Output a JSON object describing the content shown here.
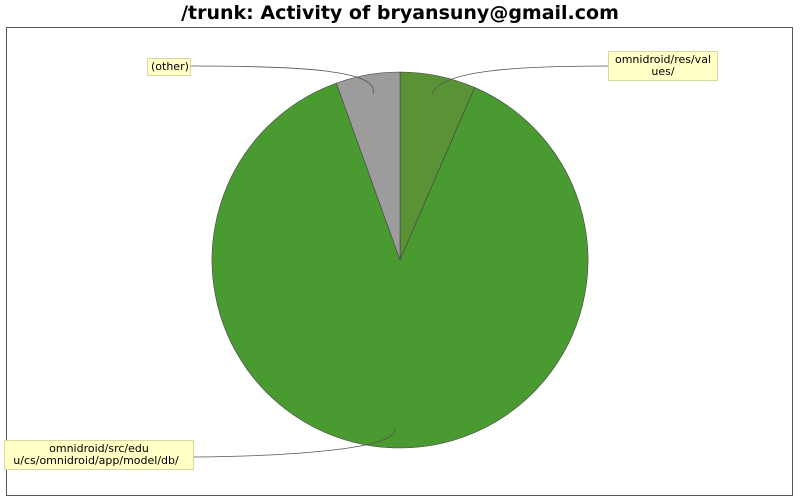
{
  "title": "/trunk: Activity of bryansuny@gmail.com",
  "chart_data": {
    "type": "pie",
    "slices": [
      {
        "label_lines": [
          "omnidroid/res/val",
          "ues/"
        ],
        "value": 6.5,
        "color": "#5a9236"
      },
      {
        "label_lines": [
          "omnidroid/src/edu",
          "u/cs/omnidroid/app/model/db/"
        ],
        "value": 88.0,
        "color": "#4a9a32"
      },
      {
        "label_lines": [
          "(other)"
        ],
        "value": 5.5,
        "color": "#9c9c9c"
      }
    ],
    "start_angle_deg": 0,
    "direction": "clockwise",
    "legend": "none (callout labels)"
  }
}
